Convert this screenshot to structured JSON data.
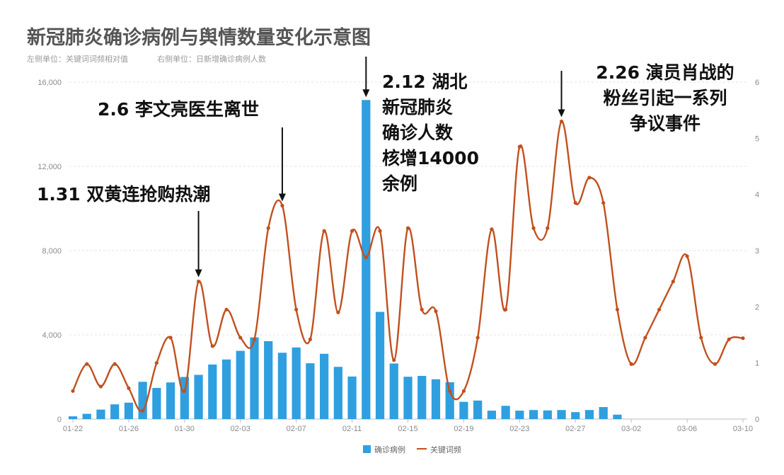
{
  "chart_data": {
    "type": "bar",
    "title": "新冠肺炎确诊病例与舆情数量变化示意图",
    "subtitle_left": "左侧单位：关键词词频相对值",
    "subtitle_right": "右侧单位：日新增确诊病例人数",
    "categories": [
      "01-22",
      "01-23",
      "01-24",
      "01-25",
      "01-26",
      "01-27",
      "01-28",
      "01-29",
      "01-30",
      "01-31",
      "02-01",
      "02-02",
      "02-03",
      "02-04",
      "02-05",
      "02-06",
      "02-07",
      "02-08",
      "02-09",
      "02-10",
      "02-11",
      "02-12",
      "02-13",
      "02-14",
      "02-15",
      "02-16",
      "02-17",
      "02-18",
      "02-19",
      "02-20",
      "02-21",
      "02-22",
      "02-23",
      "02-24",
      "02-25",
      "02-26",
      "02-27",
      "02-28",
      "02-29",
      "03-01",
      "03-02",
      "03-03",
      "03-04",
      "03-05",
      "03-06",
      "03-07",
      "03-08",
      "03-09",
      "03-10"
    ],
    "x_tick_labels": [
      "01-22",
      "01-26",
      "01-30",
      "02-03",
      "02-07",
      "02-11",
      "02-15",
      "02-19",
      "02-23",
      "02-27",
      "03-02",
      "03-06",
      "03-10"
    ],
    "left_axis": {
      "ticks": [
        "0",
        "4,000",
        "8,000",
        "12,000",
        "16,000"
      ],
      "ylim": [
        0,
        16000
      ]
    },
    "right_axis": {
      "ticks": [
        "0",
        "1",
        "2",
        "3",
        "4",
        "5",
        "6"
      ],
      "ylim": [
        0,
        6
      ]
    },
    "series": [
      {
        "name": "确诊病例",
        "type": "bar",
        "axis": "left",
        "color": "#2f9fe0",
        "values": [
          130,
          250,
          450,
          700,
          780,
          1770,
          1480,
          1740,
          2000,
          2100,
          2590,
          2830,
          3240,
          3880,
          3700,
          3150,
          3400,
          2650,
          3100,
          2480,
          2020,
          15150,
          5090,
          2640,
          2010,
          2050,
          1890,
          1750,
          820,
          880,
          400,
          630,
          400,
          430,
          410,
          430,
          330,
          430,
          570,
          210,
          0,
          0,
          0,
          0,
          0,
          0,
          0,
          0,
          0
        ]
      },
      {
        "name": "关键词频",
        "type": "line",
        "axis": "right",
        "color": "#c1501e",
        "values": [
          0.5,
          0.98,
          0.58,
          0.98,
          0.55,
          0.15,
          1.0,
          1.45,
          0.5,
          2.45,
          1.3,
          1.95,
          1.45,
          1.42,
          3.4,
          3.8,
          1.95,
          1.42,
          3.35,
          1.9,
          3.35,
          2.88,
          3.35,
          1.05,
          3.4,
          1.95,
          1.92,
          0.5,
          0.5,
          1.45,
          3.38,
          1.95,
          4.85,
          3.4,
          3.4,
          5.3,
          3.85,
          4.3,
          3.85,
          1.95,
          0.98,
          1.45,
          1.95,
          2.45,
          2.9,
          1.45,
          0.98,
          1.42,
          1.44
        ]
      }
    ],
    "annotations": [
      {
        "lines": [
          "1.31 双黄连抢购热潮"
        ],
        "category": "01-31"
      },
      {
        "lines": [
          "2.6  李文亮医生离世"
        ],
        "category": "02-06"
      },
      {
        "lines": [
          "2.12 湖北",
          "新冠肺炎",
          "确诊人数",
          "核增14000",
          "余例"
        ],
        "category": "02-12"
      },
      {
        "lines": [
          "2.26 演员肖战的",
          "粉丝引起一系列",
          "争议事件"
        ],
        "category": "02-26"
      }
    ],
    "legend": {
      "position": "bottom-center"
    },
    "grid": true
  }
}
